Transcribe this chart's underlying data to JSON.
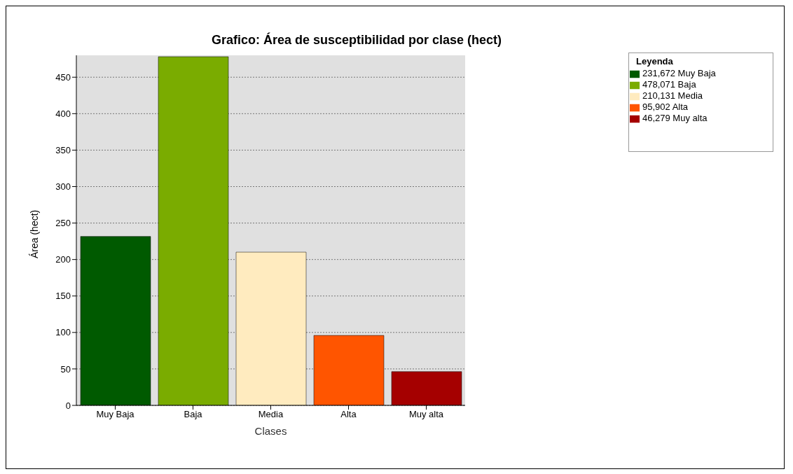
{
  "chart_data": {
    "type": "bar",
    "title": "Grafico: Área de susceptibilidad por clase (hect)",
    "xlabel": "Clases",
    "ylabel": "Área (hect)",
    "legend_title": "Leyenda",
    "categories": [
      "Muy Baja",
      "Baja",
      "Media",
      "Alta",
      "Muy alta"
    ],
    "series": [
      {
        "name": "231,672 Muy Baja",
        "color": "#005a00",
        "values": [
          231.672,
          null,
          null,
          null,
          null
        ]
      },
      {
        "name": "478,071 Baja",
        "color": "#7aac00",
        "values": [
          null,
          478.071,
          null,
          null,
          null
        ]
      },
      {
        "name": "210,131 Media",
        "color": "#ffebbf",
        "values": [
          null,
          null,
          210.131,
          null,
          null
        ]
      },
      {
        "name": "95,902 Alta",
        "color": "#ff5500",
        "values": [
          null,
          null,
          null,
          95.902,
          null
        ]
      },
      {
        "name": "46,279 Muy alta",
        "color": "#a50000",
        "values": [
          null,
          null,
          null,
          null,
          46.279
        ]
      }
    ],
    "ylim": [
      0,
      480
    ],
    "yticks": [
      0,
      50,
      100,
      150,
      200,
      250,
      300,
      350,
      400,
      450
    ],
    "grid": "y",
    "legend": "top right"
  }
}
